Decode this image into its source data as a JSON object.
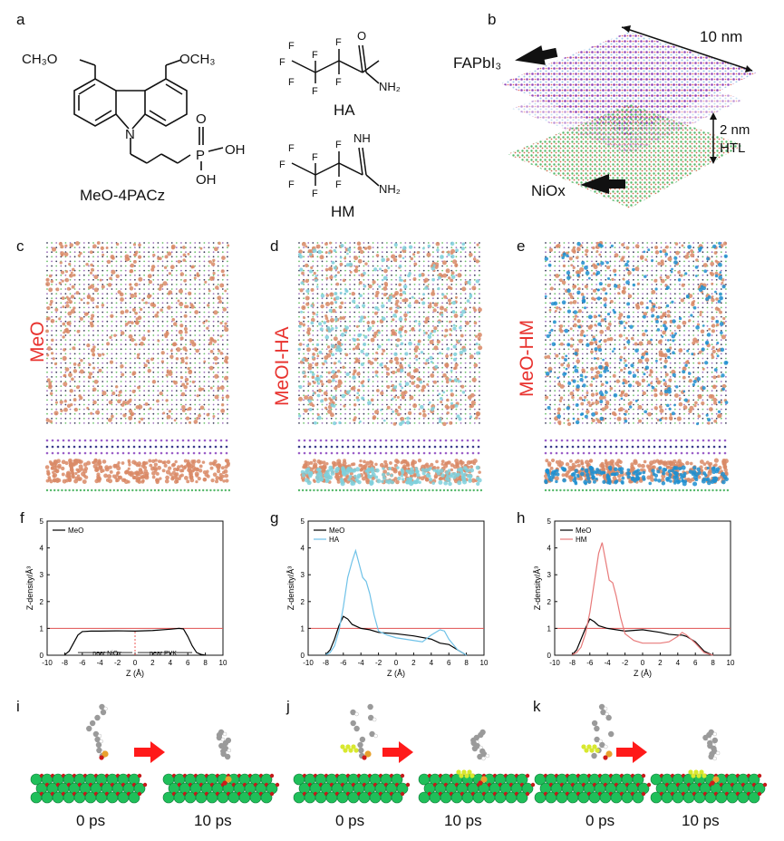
{
  "panels": {
    "a": "a",
    "b": "b",
    "c": "c",
    "d": "d",
    "e": "e",
    "f": "f",
    "g": "g",
    "h": "h",
    "i": "i",
    "j": "j",
    "k": "k"
  },
  "molecules": {
    "meo4pacz": {
      "name": "MeO-4PACz",
      "och3_left": "CH₃O",
      "och3_right": "OCH₃",
      "n": "N",
      "p": "P",
      "o": "O",
      "oh1": "OH",
      "oh2": "OH"
    },
    "ha": {
      "name": "HA",
      "o": "O",
      "nh2": "NH₂",
      "f": "F"
    },
    "hm": {
      "name": "HM",
      "nh": "NH",
      "nh2": "NH₂",
      "f": "F"
    }
  },
  "schematic": {
    "size": "10 nm",
    "fapbi3": "FAPbI₃",
    "gap": "2 nm",
    "htl": "HTL",
    "niox": "NiOx"
  },
  "side_labels": {
    "c": "MeO",
    "d": "MeOI-HA",
    "e": "MeO-HM"
  },
  "colors": {
    "meo_particles": "#d98a66",
    "ha_particles": "#7fd0dc",
    "hm_particles": "#1f8fd0",
    "red_label": "#e8322e",
    "ref_line": "#e05050",
    "meo_curve": "#000000",
    "ha_curve": "#6fc2e8",
    "hm_curve": "#e87a7a",
    "ni_atom": "#1fbf5a",
    "arrow_red": "#ff1a1a"
  },
  "chart_data": [
    {
      "type": "line",
      "panel": "f",
      "xlabel": "Z (Å)",
      "ylabel": "Z-density/Å³",
      "xlim": [
        -10,
        10
      ],
      "ylim": [
        0,
        5
      ],
      "xticks": [
        "-10",
        "-8",
        "-6",
        "-4",
        "-2",
        "0",
        "2",
        "4",
        "6",
        "8",
        "10"
      ],
      "yticks": [
        "0",
        "1",
        "2",
        "3",
        "4",
        "5"
      ],
      "reference_line": 1,
      "annotations": {
        "left": "near NiOx",
        "right": "near PVK"
      },
      "series": [
        {
          "name": "MeO",
          "x": [
            -8,
            -7.5,
            -7,
            -6.5,
            -6,
            -5,
            -4,
            -2,
            0,
            2,
            4,
            5,
            5.5,
            6,
            6.5,
            7,
            7.5,
            8
          ],
          "y": [
            0.02,
            0.15,
            0.45,
            0.75,
            0.88,
            0.9,
            0.9,
            0.91,
            0.9,
            0.92,
            0.97,
            1.0,
            0.98,
            0.7,
            0.35,
            0.1,
            0.03,
            0.0
          ]
        }
      ]
    },
    {
      "type": "line",
      "panel": "g",
      "xlabel": "Z (Å)",
      "ylabel": "Z-density/Å³",
      "xlim": [
        -10,
        10
      ],
      "ylim": [
        0,
        5
      ],
      "xticks": [
        "-10",
        "-8",
        "-6",
        "-4",
        "-2",
        "0",
        "2",
        "4",
        "6",
        "8",
        "10"
      ],
      "yticks": [
        "0",
        "1",
        "2",
        "3",
        "4",
        "5"
      ],
      "reference_line": 1,
      "series": [
        {
          "name": "MeO",
          "x": [
            -8,
            -7.5,
            -7,
            -6.5,
            -6,
            -5.5,
            -5,
            -4,
            -3,
            -2,
            0,
            2,
            4,
            5,
            6,
            7,
            8
          ],
          "y": [
            0.02,
            0.2,
            0.6,
            1.1,
            1.45,
            1.35,
            1.15,
            1.0,
            0.95,
            0.85,
            0.8,
            0.72,
            0.6,
            0.45,
            0.4,
            0.2,
            0.0
          ]
        },
        {
          "name": "HA",
          "x": [
            -8,
            -7.5,
            -7,
            -6.5,
            -6,
            -5.5,
            -5,
            -4.6,
            -4.2,
            -3.8,
            -3.4,
            -3,
            -2.5,
            -2,
            -1,
            0,
            2,
            3,
            4,
            5,
            5.5,
            6,
            7,
            8
          ],
          "y": [
            0.02,
            0.1,
            0.35,
            0.9,
            1.8,
            2.9,
            3.5,
            3.9,
            3.4,
            2.9,
            2.75,
            2.3,
            1.5,
            0.9,
            0.75,
            0.65,
            0.55,
            0.5,
            0.75,
            0.95,
            0.9,
            0.6,
            0.2,
            0.0
          ]
        }
      ]
    },
    {
      "type": "line",
      "panel": "h",
      "xlabel": "Z (Å)",
      "ylabel": "Z-density/Å³",
      "xlim": [
        -10,
        10
      ],
      "ylim": [
        0,
        5
      ],
      "xticks": [
        "-10",
        "-8",
        "-6",
        "-4",
        "-2",
        "0",
        "2",
        "4",
        "6",
        "8",
        "10"
      ],
      "yticks": [
        "0",
        "1",
        "2",
        "3",
        "4",
        "5"
      ],
      "reference_line": 1,
      "series": [
        {
          "name": "MeO",
          "x": [
            -8,
            -7.5,
            -7,
            -6.5,
            -6,
            -5.5,
            -5,
            -4,
            -3,
            -2,
            0,
            2,
            3,
            4,
            4.5,
            5,
            6,
            7,
            8
          ],
          "y": [
            0.02,
            0.2,
            0.6,
            1.0,
            1.35,
            1.25,
            1.1,
            1.0,
            0.95,
            0.9,
            0.95,
            0.85,
            0.78,
            0.75,
            0.75,
            0.7,
            0.5,
            0.15,
            0.0
          ]
        },
        {
          "name": "HM",
          "x": [
            -8,
            -7.5,
            -7,
            -6.5,
            -6,
            -5.5,
            -5,
            -4.6,
            -4.2,
            -3.8,
            -3.4,
            -3,
            -2.5,
            -2,
            -1,
            0,
            2,
            3,
            4,
            4.5,
            5,
            6,
            7,
            8
          ],
          "y": [
            0.02,
            0.1,
            0.3,
            0.8,
            1.6,
            2.7,
            3.8,
            4.2,
            3.5,
            2.8,
            2.7,
            2.2,
            1.4,
            0.8,
            0.55,
            0.45,
            0.45,
            0.5,
            0.7,
            0.85,
            0.75,
            0.45,
            0.1,
            0.0
          ]
        }
      ]
    }
  ],
  "snapshots": {
    "i": {
      "t0": "0 ps",
      "t1": "10 ps"
    },
    "j": {
      "t0": "0 ps",
      "t1": "10 ps"
    },
    "k": {
      "t0": "0 ps",
      "t1": "10 ps"
    }
  }
}
